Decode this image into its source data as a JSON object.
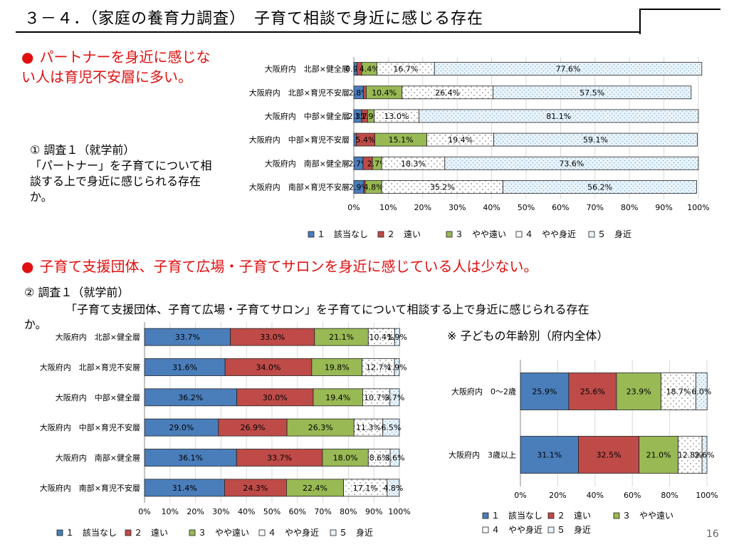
{
  "header": {
    "title": "３－４．（家庭の養育力調査）　子育て相談で身近に感じる存在",
    "page_number": "16"
  },
  "bullets": {
    "bullet1": "パートナーを身近に感じない人は育児不安層に多い。",
    "bullet2": "子育て支援団体、子育て広場・子育てサロンを身近に感じている人は少ない。"
  },
  "notes": {
    "survey1_label": "① 調査１（就学前）",
    "survey1_desc": "「パートナー」を子育てについて相談する上で身近に感じられる存在か。",
    "survey2_label": "② 調査１（就学前）",
    "survey2_desc_line1": "「子育て支援団体、子育て広場・子育てサロン」を子育てについて相談する上で身近に感じられる存在",
    "survey2_desc_line2": "か。",
    "age_note": "※ 子どもの年齢別（府内全体）"
  },
  "colors": {
    "s1": "#4a7ebb",
    "s2": "#be4b48",
    "s3": "#98b954",
    "s4": "#ffffff",
    "s5": "#e8f3fb"
  },
  "chart_data": [
    {
      "type": "bar",
      "orientation": "horizontal-stacked-100",
      "categories": [
        "大阪府内　北部×健全層",
        "大阪府内　北部×育児不安層",
        "大阪府内　中部×健全層",
        "大阪府内　中部×育児不安層",
        "大阪府内　南部×健全層",
        "大阪府内　南部×育児不安層"
      ],
      "series": [
        {
          "name": "１　該当なし",
          "values": [
            0.9,
            2.8,
            2.3,
            0.7,
            2.7,
            2.9
          ]
        },
        {
          "name": "２　遠い",
          "values": [
            1.4,
            0.8,
            1.7,
            5.4,
            2.7,
            0.4
          ]
        },
        {
          "name": "３　やや遠い",
          "values": [
            4.4,
            10.4,
            1.9,
            15.1,
            2.7,
            4.8
          ]
        },
        {
          "name": "４　やや身近",
          "values": [
            16.7,
            26.4,
            13.0,
            19.4,
            18.3,
            35.2
          ]
        },
        {
          "name": "５　身近",
          "values": [
            77.6,
            57.5,
            81.1,
            59.1,
            73.6,
            56.2
          ]
        }
      ],
      "labels": [
        [
          "0.9%",
          "",
          "4.4%",
          "16.7%",
          "77.6%"
        ],
        [
          "2.8%",
          "",
          "10.4%",
          "26.4%",
          "57.5%"
        ],
        [
          "2.3%",
          "1.7%",
          "1.9%",
          "13.0%",
          "81.1%"
        ],
        [
          "",
          "5.4%",
          "15.1%",
          "19.4%",
          "59.1%"
        ],
        [
          "2.7%",
          "",
          "2.7%",
          "18.3%",
          "73.6%"
        ],
        [
          "2.9%",
          "",
          "4.8%",
          "35.2%",
          "56.2%"
        ]
      ],
      "xticks": [
        "0%",
        "10%",
        "20%",
        "30%",
        "40%",
        "50%",
        "60%",
        "70%",
        "80%",
        "90%",
        "100%"
      ],
      "xlim": [
        0,
        100
      ],
      "legend_position": "bottom"
    },
    {
      "type": "bar",
      "orientation": "horizontal-stacked-100",
      "categories": [
        "大阪府内　北部×健全層",
        "大阪府内　北部×育児不安層",
        "大阪府内　中部×健全層",
        "大阪府内　中部×育児不安層",
        "大阪府内　南部×健全層",
        "大阪府内　南部×育児不安層"
      ],
      "series": [
        {
          "name": "１　該当なし",
          "values": [
            33.7,
            31.6,
            36.2,
            29.0,
            36.1,
            31.4
          ]
        },
        {
          "name": "２　遠い",
          "values": [
            33.0,
            34.0,
            30.0,
            26.9,
            33.7,
            24.3
          ]
        },
        {
          "name": "３　やや遠い",
          "values": [
            21.1,
            19.8,
            19.4,
            26.3,
            18.0,
            22.4
          ]
        },
        {
          "name": "４　やや身近",
          "values": [
            10.4,
            12.7,
            10.7,
            11.3,
            8.6,
            17.1
          ]
        },
        {
          "name": "５　身近",
          "values": [
            1.9,
            1.9,
            3.7,
            6.5,
            3.6,
            4.8
          ]
        }
      ],
      "labels": [
        [
          "33.7%",
          "33.0%",
          "21.1%",
          "10.4%",
          "1.9%"
        ],
        [
          "31.6%",
          "34.0%",
          "19.8%",
          "12.7%",
          "1.9%"
        ],
        [
          "36.2%",
          "30.0%",
          "19.4%",
          "10.7%",
          "3.7%"
        ],
        [
          "29.0%",
          "26.9%",
          "26.3%",
          "11.3%",
          "6.5%"
        ],
        [
          "36.1%",
          "33.7%",
          "18.0%",
          "8.6%",
          "3.6%"
        ],
        [
          "31.4%",
          "24.3%",
          "22.4%",
          "17.1%",
          "4.8%"
        ]
      ],
      "xticks": [
        "0%",
        "10%",
        "20%",
        "30%",
        "40%",
        "50%",
        "60%",
        "70%",
        "80%",
        "90%",
        "100%"
      ],
      "xlim": [
        0,
        100
      ],
      "legend_position": "bottom"
    },
    {
      "type": "bar",
      "orientation": "horizontal-stacked-100",
      "categories": [
        "大阪府内　0～2歳",
        "大阪府内　3歳以上"
      ],
      "series": [
        {
          "name": "１　該当なし",
          "values": [
            25.9,
            31.1
          ]
        },
        {
          "name": "２　遠い",
          "values": [
            25.6,
            32.5
          ]
        },
        {
          "name": "３　やや遠い",
          "values": [
            23.9,
            21.0
          ]
        },
        {
          "name": "４　やや身近",
          "values": [
            18.7,
            12.8
          ]
        },
        {
          "name": "５　身近",
          "values": [
            6.0,
            2.6
          ]
        }
      ],
      "labels": [
        [
          "25.9%",
          "25.6%",
          "23.9%",
          "18.7%",
          "6.0%"
        ],
        [
          "31.1%",
          "32.5%",
          "21.0%",
          "12.8%",
          "2.6%"
        ]
      ],
      "xticks": [
        "0%",
        "20%",
        "40%",
        "60%",
        "80%",
        "100%"
      ],
      "xlim": [
        0,
        100
      ],
      "legend_position": "bottom"
    }
  ]
}
